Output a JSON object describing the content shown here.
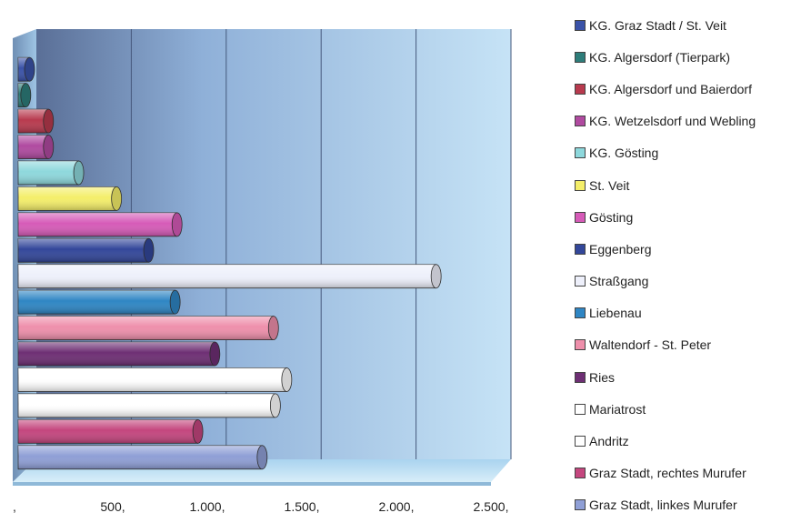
{
  "chart_data": {
    "type": "bar",
    "orientation": "horizontal",
    "style": "3d-cylinder",
    "title": "",
    "xlabel": "",
    "ylabel": "",
    "xlim": [
      0,
      2500
    ],
    "grid": true,
    "legend_position": "right",
    "x_tick_labels": [
      ",",
      "500,",
      "1.000,",
      "1.500,",
      "2.000,",
      "2.500,"
    ],
    "series": [
      {
        "name": "KG. Graz Stadt / St. Veit",
        "value": 60,
        "color": "#3a52a8"
      },
      {
        "name": "KG. Algersdorf (Tierpark)",
        "value": 40,
        "color": "#2e7d7a"
      },
      {
        "name": "KG. Algersdorf und Baierdorf",
        "value": 160,
        "color": "#b83a4e"
      },
      {
        "name": "KG. Wetzelsdorf und Webling",
        "value": 160,
        "color": "#b04aa0"
      },
      {
        "name": "KG. Gösting",
        "value": 320,
        "color": "#8ed8dc"
      },
      {
        "name": "St. Veit",
        "value": 520,
        "color": "#f4ee6a"
      },
      {
        "name": "Gösting",
        "value": 840,
        "color": "#d65bb8"
      },
      {
        "name": "Eggenberg",
        "value": 690,
        "color": "#33479a"
      },
      {
        "name": "Straßgang",
        "value": 2210,
        "color": "#eef0fb"
      },
      {
        "name": "Liebenau",
        "value": 830,
        "color": "#2f86c4"
      },
      {
        "name": "Waltendorf - St. Peter",
        "value": 1350,
        "color": "#ee8fab"
      },
      {
        "name": "Ries",
        "value": 1040,
        "color": "#6e2f74"
      },
      {
        "name": "Mariatrost",
        "value": 1420,
        "color": "#ffffff"
      },
      {
        "name": "Andritz",
        "value": 1360,
        "color": "#ffffff"
      },
      {
        "name": "Graz Stadt, rechtes Murufer",
        "value": 950,
        "color": "#c4467e"
      },
      {
        "name": "Graz Stadt, linkes Murufer",
        "value": 1290,
        "color": "#8f9fd6"
      }
    ]
  }
}
